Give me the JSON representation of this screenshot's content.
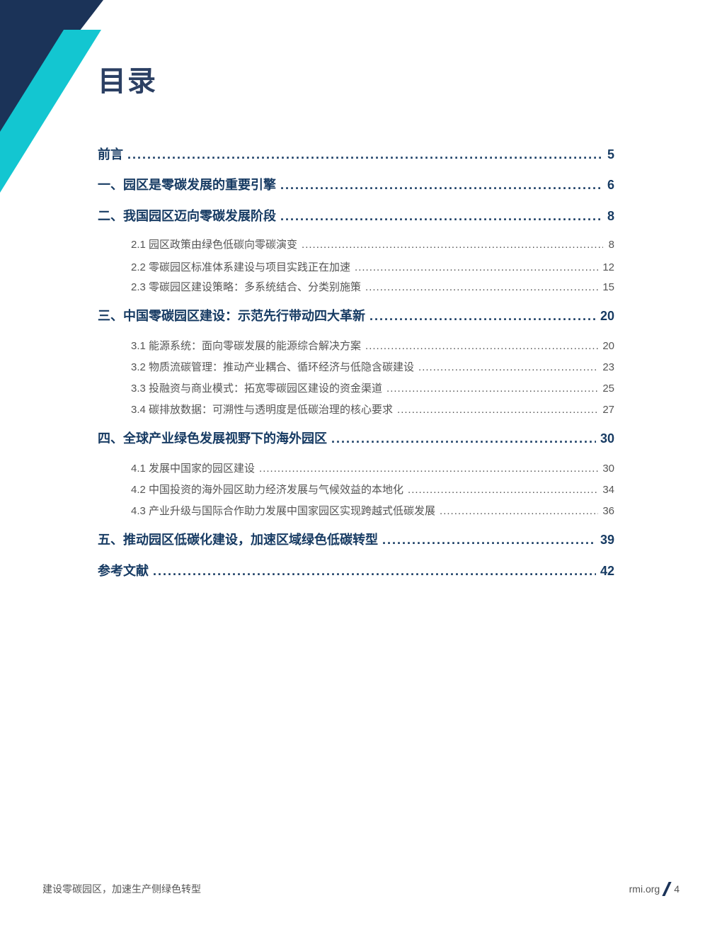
{
  "colors": {
    "navy": "#1b3358",
    "cyan": "#13c6d1",
    "heading": "#173b63",
    "subentry": "#555555"
  },
  "title": "目录",
  "toc": [
    {
      "label": "前言",
      "page": "5",
      "level": 1
    },
    {
      "label": "一、园区是零碳发展的重要引擎",
      "page": "6",
      "level": 1
    },
    {
      "label": "二、我国园区迈向零碳发展阶段",
      "page": "8",
      "level": 1
    },
    {
      "label": "2.1 园区政策由绿色低碳向零碳演变",
      "page": "8",
      "level": 2
    },
    {
      "label": "2.2 零碳园区标准体系建设与项目实践正在加速",
      "page": "12",
      "level": 2
    },
    {
      "label": "2.3 零碳园区建设策略：多系统结合、分类别施策",
      "page": "15",
      "level": 2
    },
    {
      "label": "三、中国零碳园区建设：示范先行带动四大革新",
      "page": "20",
      "level": 1
    },
    {
      "label": "3.1 能源系统：面向零碳发展的能源综合解决方案",
      "page": "20",
      "level": 2
    },
    {
      "label": "3.2 物质流碳管理：推动产业耦合、循环经济与低隐含碳建设",
      "page": "23",
      "level": 2
    },
    {
      "label": "3.3 投融资与商业模式：拓宽零碳园区建设的资金渠道",
      "page": "25",
      "level": 2
    },
    {
      "label": "3.4 碳排放数据：可溯性与透明度是低碳治理的核心要求",
      "page": "27",
      "level": 2
    },
    {
      "label": "四、全球产业绿色发展视野下的海外园区",
      "page": "30",
      "level": 1
    },
    {
      "label": "4.1 发展中国家的园区建设",
      "page": "30",
      "level": 2
    },
    {
      "label": "4.2 中国投资的海外园区助力经济发展与气候效益的本地化",
      "page": "34",
      "level": 2
    },
    {
      "label": "4.3 产业升级与国际合作助力发展中国家园区实现跨越式低碳发展",
      "page": "36",
      "level": 2
    },
    {
      "label": "五、推动园区低碳化建设，加速区域绿色低碳转型",
      "page": "39",
      "level": 1
    },
    {
      "label": "参考文献",
      "page": "42",
      "level": 1
    }
  ],
  "footer": {
    "doc_title": "建设零碳园区，加速生产侧绿色转型",
    "site": "rmi.org",
    "page_number": "4"
  }
}
